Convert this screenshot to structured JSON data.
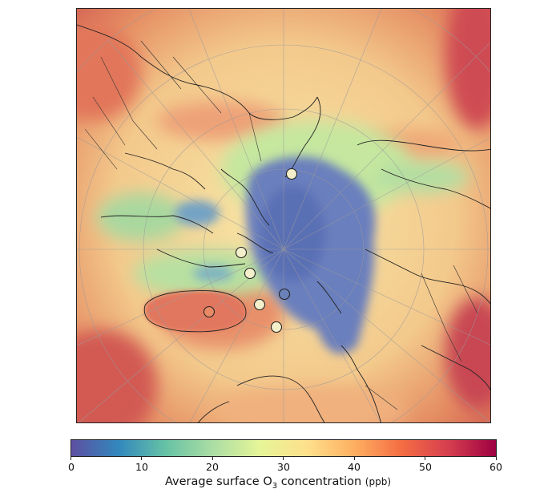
{
  "colorbar": {
    "min": 0,
    "max": 60,
    "ticks": [
      "0",
      "10",
      "20",
      "30",
      "40",
      "50",
      "60"
    ],
    "label_prefix": "Average surface O",
    "label_subscript": "3",
    "label_suffix": " concentration",
    "label_unit": "(ppb)",
    "colormap": [
      "#5e4fa2",
      "#3288bd",
      "#66c2a5",
      "#abdda4",
      "#e6f598",
      "#fee08b",
      "#fdae61",
      "#f46d43",
      "#d53e4f",
      "#9e0142"
    ]
  },
  "map": {
    "projection": "north-polar-stereographic",
    "gridlines": true,
    "coastlines": true,
    "borders": true,
    "stations": 8
  }
}
